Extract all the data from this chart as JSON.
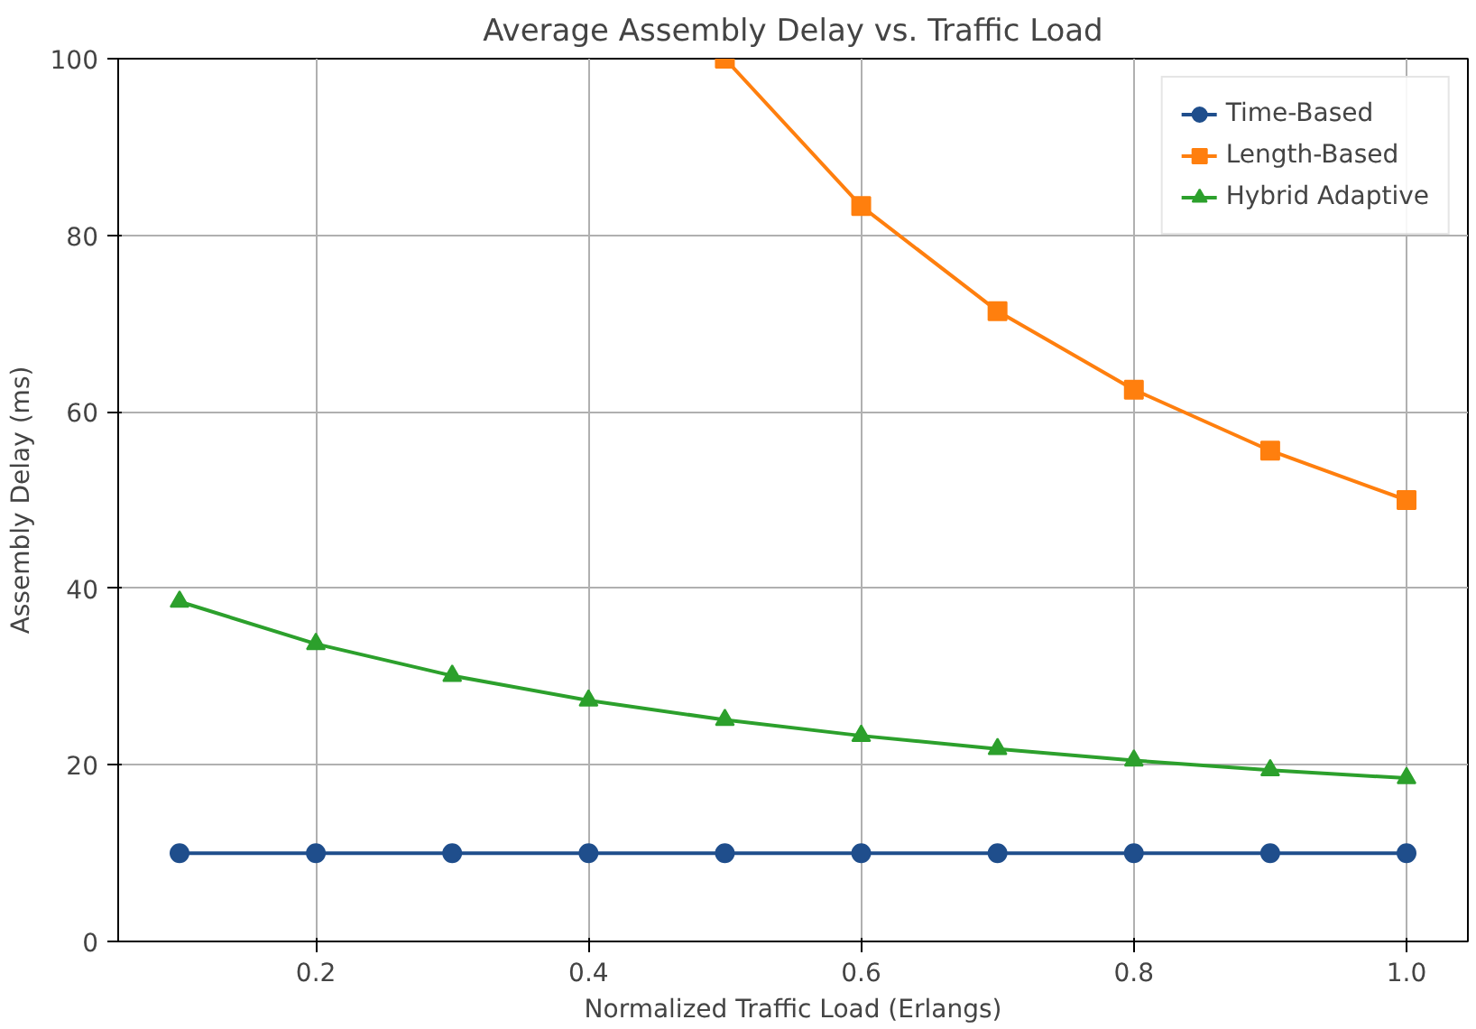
{
  "chart_data": {
    "type": "line",
    "title": "Average Assembly Delay vs. Traffic Load",
    "xlabel": "Normalized Traffic Load (Erlangs)",
    "ylabel": "Assembly Delay (ms)",
    "x": [
      0.1,
      0.2,
      0.3,
      0.4,
      0.5,
      0.6,
      0.7,
      0.8,
      0.9,
      1.0
    ],
    "series": [
      {
        "name": "Time-Based",
        "color": "#1f4e8c",
        "marker": "circle",
        "values": [
          10,
          10,
          10,
          10,
          10,
          10,
          10,
          10,
          10,
          10
        ]
      },
      {
        "name": "Length-Based",
        "color": "#ff7f0e",
        "marker": "square",
        "values": [
          null,
          null,
          null,
          null,
          100,
          83.3,
          71.4,
          62.5,
          55.6,
          50
        ]
      },
      {
        "name": "Hybrid Adaptive",
        "color": "#2ca02c",
        "marker": "triangle",
        "values": [
          38.5,
          33.7,
          30.1,
          27.3,
          25.1,
          23.3,
          21.8,
          20.5,
          19.4,
          18.5
        ]
      }
    ],
    "xlim": [
      0.055,
      1.045
    ],
    "ylim": [
      0,
      100
    ],
    "xticks": [
      0.2,
      0.4,
      0.6,
      0.8,
      {
        "value": 1,
        "label": "1.0"
      }
    ],
    "yticks": [
      0,
      20,
      40,
      60,
      80,
      100
    ],
    "grid": true,
    "legend": "top right"
  }
}
